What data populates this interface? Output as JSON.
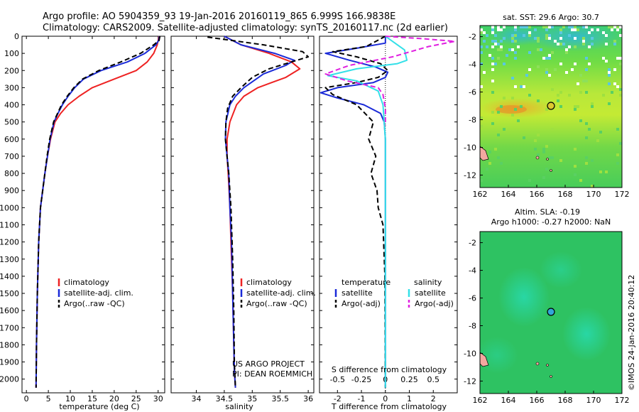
{
  "header": {
    "line1": "Argo profile: AO 5904359_93 19-Jan-2016 20160119_865 6.999S 166.9838E",
    "line2": "Climatology: CARS2009. Satellite-adjusted climatology: synTS_20160117.nc (2d earlier)"
  },
  "colors": {
    "climatology": "#ee2222",
    "satellite": "#1a2ad8",
    "argo": "#000000",
    "satellite_salinity": "#33e0e8",
    "argo_salinity": "#e020e0"
  },
  "footer": {
    "stamp": "©IMOS 24-Jan-2016 20:40:12",
    "project_line1": "US ARGO PROJECT",
    "project_line2": "PI: DEAN ROEMMICH"
  },
  "chart_data": [
    {
      "id": "temperature",
      "type": "line",
      "title": "",
      "xlabel": "temperature (deg C)",
      "ylabel": "",
      "xlim": [
        -1,
        31.5
      ],
      "ylim": [
        2080,
        0
      ],
      "x_ticks": [
        "0",
        "5",
        "10",
        "15",
        "20",
        "25",
        "30"
      ],
      "y_ticks": [
        "0",
        "100",
        "200",
        "300",
        "400",
        "500",
        "600",
        "700",
        "800",
        "900",
        "1000",
        "1100",
        "1200",
        "1300",
        "1400",
        "1500",
        "1600",
        "1700",
        "1800",
        "1900",
        "2000"
      ],
      "legend": {
        "position": "bottom-center",
        "entries": [
          "climatology",
          "satellite-adj. clim.",
          "Argo(..raw -QC)"
        ]
      },
      "series": [
        {
          "name": "climatology",
          "style": "solid",
          "x": [
            30.2,
            30,
            29.8,
            29,
            27.5,
            25,
            20,
            15,
            12,
            9.5,
            7.8,
            6.5,
            5.5,
            4.8,
            4.2,
            3.2,
            2.8,
            2.5,
            2.3,
            2.2
          ],
          "y": [
            0,
            25,
            50,
            100,
            150,
            200,
            250,
            300,
            350,
            400,
            450,
            500,
            600,
            700,
            800,
            1000,
            1200,
            1500,
            1800,
            2050
          ]
        },
        {
          "name": "satellite-adj. clim.",
          "style": "solid",
          "x": [
            30.3,
            30.1,
            29.5,
            27,
            23,
            17,
            13,
            11,
            9.5,
            8.2,
            7.2,
            6.3,
            5.4,
            4.8,
            4.2,
            3.2,
            2.8,
            2.5,
            2.3,
            2.2
          ],
          "y": [
            0,
            25,
            50,
            100,
            150,
            200,
            250,
            300,
            350,
            400,
            450,
            500,
            600,
            700,
            800,
            1000,
            1200,
            1500,
            1800,
            2050
          ]
        },
        {
          "name": "Argo(..raw -QC)",
          "style": "dashed",
          "x": [
            30.4,
            30.2,
            29,
            26,
            21.5,
            16.5,
            12.8,
            10.8,
            9.3,
            8,
            7.1,
            6.2,
            5.3,
            4.7,
            4.2,
            3.2,
            2.8,
            2.5,
            2.3,
            2.2
          ],
          "y": [
            0,
            25,
            50,
            100,
            150,
            200,
            250,
            300,
            350,
            400,
            450,
            500,
            600,
            700,
            800,
            1000,
            1200,
            1500,
            1800,
            2050
          ]
        }
      ]
    },
    {
      "id": "salinity",
      "type": "line",
      "title": "",
      "xlabel": "salinity",
      "ylabel": "",
      "xlim": [
        33.55,
        36.1
      ],
      "ylim": [
        2080,
        0
      ],
      "x_ticks": [
        "34",
        "34.5",
        "35",
        "35.5",
        "36"
      ],
      "legend": {
        "position": "bottom-center",
        "entries": [
          "climatology",
          "satellite-adj. clim.",
          "Argo(..raw -QC)"
        ]
      },
      "annotation": [
        "US ARGO PROJECT",
        "PI: DEAN ROEMMICH"
      ],
      "series": [
        {
          "name": "climatology",
          "style": "solid",
          "x": [
            34.5,
            34.8,
            35.3,
            35.7,
            35.85,
            35.6,
            35.1,
            34.85,
            34.72,
            34.6,
            34.55,
            34.55,
            34.57,
            34.6,
            34.62,
            34.65,
            34.67,
            34.68,
            34.7
          ],
          "y": [
            0,
            50,
            100,
            150,
            190,
            240,
            300,
            350,
            400,
            500,
            600,
            700,
            800,
            1000,
            1200,
            1500,
            1800,
            1950,
            2050
          ]
        },
        {
          "name": "satellite-adj. clim.",
          "style": "solid",
          "x": [
            34.5,
            34.8,
            35.4,
            35.75,
            35.6,
            35.2,
            34.85,
            34.7,
            34.6,
            34.53,
            34.52,
            34.55,
            34.58,
            34.6,
            34.63,
            34.65,
            34.67,
            34.68,
            34.7
          ],
          "y": [
            0,
            50,
            100,
            140,
            170,
            220,
            300,
            350,
            400,
            500,
            600,
            700,
            800,
            1000,
            1200,
            1500,
            1800,
            1950,
            2050
          ]
        },
        {
          "name": "Argo(..raw -QC)",
          "style": "dashed",
          "x": [
            34.2,
            35.2,
            35.9,
            36.0,
            35.7,
            35.3,
            35.0,
            34.8,
            34.65,
            34.56,
            34.53,
            34.52,
            34.55,
            34.58,
            34.62,
            34.65,
            34.67,
            34.68,
            34.7
          ],
          "y": [
            5,
            50,
            90,
            120,
            150,
            190,
            240,
            300,
            350,
            420,
            500,
            600,
            700,
            800,
            1000,
            1300,
            1600,
            1900,
            2050
          ]
        }
      ]
    },
    {
      "id": "difference",
      "type": "line",
      "title": "",
      "xlabel": "T difference from climatology",
      "xlabel2": "S difference from climatology",
      "xlim": [
        -2.75,
        3
      ],
      "ylim": [
        2080,
        0
      ],
      "x_ticks": [
        "-2",
        "-1",
        "0",
        "1",
        "2"
      ],
      "x_ticks_salinity": [
        "-0.5",
        "-0.25",
        "0",
        "0.25",
        "0.5"
      ],
      "legend": {
        "position": "bottom-center",
        "headers": [
          "temperature",
          "salinity"
        ],
        "entries": [
          "satellite",
          "Argo(-adj)",
          "satellite",
          "Argo(-adj)"
        ]
      },
      "series": [
        {
          "name": "temperature satellite",
          "style": "solid",
          "x": [
            0,
            0,
            -1.2,
            -2.5,
            -1.5,
            -0.4,
            0.1,
            0,
            -0.5,
            -2,
            -2.7,
            -2,
            -0.9,
            -0.2,
            -0.05,
            0,
            0,
            0,
            0
          ],
          "y": [
            0,
            40,
            70,
            100,
            140,
            180,
            210,
            240,
            270,
            300,
            330,
            360,
            400,
            450,
            500,
            600,
            800,
            1200,
            2050
          ]
        },
        {
          "name": "temperature Argo(-adj)",
          "style": "dashed",
          "x": [
            0,
            -0.8,
            -2.2,
            -1.2,
            -0.2,
            0.1,
            -0.3,
            -1.2,
            -2.5,
            -2.2,
            -1.2,
            -0.5,
            -0.7,
            -0.4,
            -0.6,
            -0.35,
            -0.3,
            -0.1,
            -0.02,
            0
          ],
          "y": [
            0,
            60,
            90,
            120,
            160,
            200,
            240,
            270,
            300,
            340,
            400,
            500,
            600,
            700,
            800,
            900,
            1000,
            1100,
            1400,
            2050
          ]
        },
        {
          "name": "salinity satellite",
          "style": "solid",
          "x": [
            0,
            0.4,
            0.8,
            0.9,
            0.5,
            -1.2,
            -2.4,
            -1.2,
            -0.3,
            -0.1,
            0,
            0
          ],
          "y": [
            0,
            40,
            80,
            140,
            160,
            190,
            230,
            260,
            320,
            400,
            600,
            2050
          ]
        },
        {
          "name": "salinity Argo(-adj)",
          "style": "dashed",
          "x": [
            0,
            1.6,
            2.9,
            1.8,
            0.3,
            -1.5,
            -2.5,
            -1.6,
            -0.3,
            -0.1,
            0,
            0
          ],
          "y": [
            0,
            15,
            30,
            60,
            120,
            170,
            220,
            260,
            300,
            340,
            420,
            520
          ]
        }
      ]
    },
    {
      "id": "sst_map",
      "type": "heatmap",
      "title": "sat. SST: 29.6  Argo: 30.7",
      "xlim": [
        162,
        172
      ],
      "ylim": [
        -12.9,
        -1.2
      ],
      "x_ticks": [
        "162",
        "164",
        "166",
        "168",
        "170",
        "172"
      ],
      "y_ticks": [
        "-2",
        "-4",
        "-6",
        "-8",
        "-10",
        "-12"
      ],
      "marker": {
        "lon": 167.0,
        "lat": -7.0
      }
    },
    {
      "id": "sla_map",
      "type": "heatmap",
      "title": "Altim. SLA: -0.19",
      "subtitle": "Argo h1000: -0.27 h2000: NaN",
      "xlim": [
        162,
        172
      ],
      "ylim": [
        -12.9,
        -1.2
      ],
      "x_ticks": [
        "162",
        "164",
        "166",
        "168",
        "170",
        "172"
      ],
      "y_ticks": [
        "-2",
        "-4",
        "-6",
        "-8",
        "-10",
        "-12"
      ],
      "marker": {
        "lon": 167.0,
        "lat": -7.0
      }
    }
  ]
}
